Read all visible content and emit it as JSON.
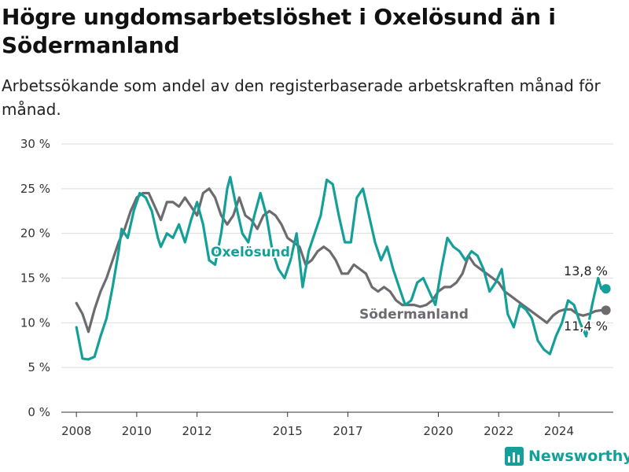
{
  "title": "Högre ungdomsarbetslöshet i Oxelösund än i Södermanland",
  "subtitle": "Arbetssökande som andel av den registerbaserade arbetskraften månad för månad.",
  "brand": "Newsworthy",
  "colors": {
    "oxelosund": "#14a098",
    "sodermanland": "#6e6a70",
    "grid": "#dddddd",
    "text": "#333333",
    "brand": "#14a098"
  },
  "chart_data": {
    "type": "line",
    "xlabel": "",
    "ylabel": "",
    "ylim": [
      0,
      30
    ],
    "xlim": [
      2007.5,
      2025.8
    ],
    "yticks": [
      0,
      5,
      10,
      15,
      20,
      25,
      30
    ],
    "ytick_labels": [
      "0 %",
      "5 %",
      "10 %",
      "15 %",
      "20 %",
      "25 %",
      "30 %"
    ],
    "xticks": [
      2008,
      2010,
      2012,
      2015,
      2017,
      2020,
      2022,
      2024
    ],
    "xtick_labels": [
      "2008",
      "2010",
      "2012",
      "2015",
      "2017",
      "2020",
      "2022",
      "2024"
    ],
    "grid": true,
    "series": [
      {
        "name": "Oxelösund",
        "label": "Oxelösund",
        "end_label": "13,8 %",
        "color": "#14a098",
        "points": [
          [
            2008.0,
            9.5
          ],
          [
            2008.2,
            6.0
          ],
          [
            2008.4,
            5.9
          ],
          [
            2008.6,
            6.2
          ],
          [
            2008.8,
            8.5
          ],
          [
            2009.0,
            10.5
          ],
          [
            2009.2,
            14.0
          ],
          [
            2009.4,
            18.0
          ],
          [
            2009.5,
            20.5
          ],
          [
            2009.7,
            19.5
          ],
          [
            2009.9,
            22.5
          ],
          [
            2010.1,
            24.5
          ],
          [
            2010.3,
            24.0
          ],
          [
            2010.5,
            22.5
          ],
          [
            2010.7,
            19.5
          ],
          [
            2010.8,
            18.5
          ],
          [
            2011.0,
            20.0
          ],
          [
            2011.2,
            19.5
          ],
          [
            2011.4,
            21.0
          ],
          [
            2011.6,
            19.0
          ],
          [
            2011.8,
            21.5
          ],
          [
            2012.0,
            23.5
          ],
          [
            2012.2,
            21.0
          ],
          [
            2012.4,
            17.0
          ],
          [
            2012.6,
            16.5
          ],
          [
            2012.8,
            20.0
          ],
          [
            2013.0,
            25.0
          ],
          [
            2013.1,
            26.3
          ],
          [
            2013.3,
            23.0
          ],
          [
            2013.5,
            20.0
          ],
          [
            2013.7,
            19.0
          ],
          [
            2013.9,
            22.0
          ],
          [
            2014.1,
            24.5
          ],
          [
            2014.3,
            22.0
          ],
          [
            2014.5,
            18.0
          ],
          [
            2014.7,
            16.0
          ],
          [
            2014.9,
            15.0
          ],
          [
            2015.1,
            17.0
          ],
          [
            2015.3,
            20.0
          ],
          [
            2015.5,
            14.0
          ],
          [
            2015.7,
            18.0
          ],
          [
            2015.9,
            20.0
          ],
          [
            2016.1,
            22.0
          ],
          [
            2016.3,
            26.0
          ],
          [
            2016.5,
            25.5
          ],
          [
            2016.7,
            22.0
          ],
          [
            2016.9,
            19.0
          ],
          [
            2017.1,
            19.0
          ],
          [
            2017.3,
            24.0
          ],
          [
            2017.5,
            25.0
          ],
          [
            2017.7,
            22.0
          ],
          [
            2017.9,
            19.0
          ],
          [
            2018.1,
            17.0
          ],
          [
            2018.3,
            18.5
          ],
          [
            2018.5,
            16.0
          ],
          [
            2018.7,
            14.0
          ],
          [
            2018.9,
            12.0
          ],
          [
            2019.1,
            12.5
          ],
          [
            2019.3,
            14.5
          ],
          [
            2019.5,
            15.0
          ],
          [
            2019.7,
            13.5
          ],
          [
            2019.9,
            12.0
          ],
          [
            2020.1,
            16.0
          ],
          [
            2020.3,
            19.5
          ],
          [
            2020.5,
            18.5
          ],
          [
            2020.7,
            18.0
          ],
          [
            2020.9,
            17.0
          ],
          [
            2021.1,
            18.0
          ],
          [
            2021.3,
            17.5
          ],
          [
            2021.5,
            16.0
          ],
          [
            2021.7,
            13.5
          ],
          [
            2021.9,
            14.5
          ],
          [
            2022.1,
            16.0
          ],
          [
            2022.3,
            11.0
          ],
          [
            2022.5,
            9.5
          ],
          [
            2022.7,
            12.0
          ],
          [
            2022.9,
            11.5
          ],
          [
            2023.1,
            10.5
          ],
          [
            2023.3,
            8.0
          ],
          [
            2023.5,
            7.0
          ],
          [
            2023.7,
            6.5
          ],
          [
            2023.9,
            8.5
          ],
          [
            2024.1,
            10.0
          ],
          [
            2024.3,
            12.5
          ],
          [
            2024.5,
            12.0
          ],
          [
            2024.7,
            10.0
          ],
          [
            2024.9,
            8.5
          ],
          [
            2025.1,
            12.0
          ],
          [
            2025.3,
            15.0
          ],
          [
            2025.4,
            13.8
          ]
        ]
      },
      {
        "name": "Södermanland",
        "label": "Södermanland",
        "end_label": "11,4 %",
        "color": "#6e6a70",
        "points": [
          [
            2008.0,
            12.2
          ],
          [
            2008.2,
            11.0
          ],
          [
            2008.4,
            9.0
          ],
          [
            2008.6,
            11.5
          ],
          [
            2008.8,
            13.5
          ],
          [
            2009.0,
            15.0
          ],
          [
            2009.2,
            17.0
          ],
          [
            2009.4,
            19.0
          ],
          [
            2009.6,
            20.5
          ],
          [
            2009.8,
            22.5
          ],
          [
            2010.0,
            24.0
          ],
          [
            2010.2,
            24.5
          ],
          [
            2010.4,
            24.5
          ],
          [
            2010.6,
            23.0
          ],
          [
            2010.8,
            21.5
          ],
          [
            2011.0,
            23.5
          ],
          [
            2011.2,
            23.5
          ],
          [
            2011.4,
            23.0
          ],
          [
            2011.6,
            24.0
          ],
          [
            2011.8,
            23.0
          ],
          [
            2012.0,
            22.0
          ],
          [
            2012.2,
            24.5
          ],
          [
            2012.4,
            25.0
          ],
          [
            2012.6,
            24.0
          ],
          [
            2012.8,
            22.0
          ],
          [
            2013.0,
            21.0
          ],
          [
            2013.2,
            22.0
          ],
          [
            2013.4,
            24.0
          ],
          [
            2013.6,
            22.0
          ],
          [
            2013.8,
            21.5
          ],
          [
            2014.0,
            20.5
          ],
          [
            2014.2,
            22.0
          ],
          [
            2014.4,
            22.5
          ],
          [
            2014.6,
            22.0
          ],
          [
            2014.8,
            21.0
          ],
          [
            2015.0,
            19.5
          ],
          [
            2015.2,
            19.0
          ],
          [
            2015.4,
            18.5
          ],
          [
            2015.6,
            16.5
          ],
          [
            2015.8,
            17.0
          ],
          [
            2016.0,
            18.0
          ],
          [
            2016.2,
            18.5
          ],
          [
            2016.4,
            18.0
          ],
          [
            2016.6,
            17.0
          ],
          [
            2016.8,
            15.5
          ],
          [
            2017.0,
            15.5
          ],
          [
            2017.2,
            16.5
          ],
          [
            2017.4,
            16.0
          ],
          [
            2017.6,
            15.5
          ],
          [
            2017.8,
            14.0
          ],
          [
            2018.0,
            13.5
          ],
          [
            2018.2,
            14.0
          ],
          [
            2018.4,
            13.5
          ],
          [
            2018.6,
            12.5
          ],
          [
            2018.8,
            12.0
          ],
          [
            2019.0,
            12.0
          ],
          [
            2019.2,
            12.0
          ],
          [
            2019.4,
            11.8
          ],
          [
            2019.6,
            12.0
          ],
          [
            2019.8,
            12.5
          ],
          [
            2020.0,
            13.5
          ],
          [
            2020.2,
            14.0
          ],
          [
            2020.4,
            14.0
          ],
          [
            2020.6,
            14.5
          ],
          [
            2020.8,
            15.5
          ],
          [
            2021.0,
            17.5
          ],
          [
            2021.2,
            16.5
          ],
          [
            2021.4,
            16.0
          ],
          [
            2021.6,
            15.5
          ],
          [
            2021.8,
            15.0
          ],
          [
            2022.0,
            14.5
          ],
          [
            2022.2,
            13.5
          ],
          [
            2022.4,
            13.0
          ],
          [
            2022.6,
            12.5
          ],
          [
            2022.8,
            12.0
          ],
          [
            2023.0,
            11.5
          ],
          [
            2023.2,
            11.0
          ],
          [
            2023.4,
            10.5
          ],
          [
            2023.6,
            10.0
          ],
          [
            2023.8,
            10.8
          ],
          [
            2024.0,
            11.3
          ],
          [
            2024.2,
            11.5
          ],
          [
            2024.4,
            11.5
          ],
          [
            2024.6,
            11.0
          ],
          [
            2024.8,
            10.8
          ],
          [
            2025.0,
            11.0
          ],
          [
            2025.2,
            11.3
          ],
          [
            2025.4,
            11.4
          ]
        ]
      }
    ]
  }
}
